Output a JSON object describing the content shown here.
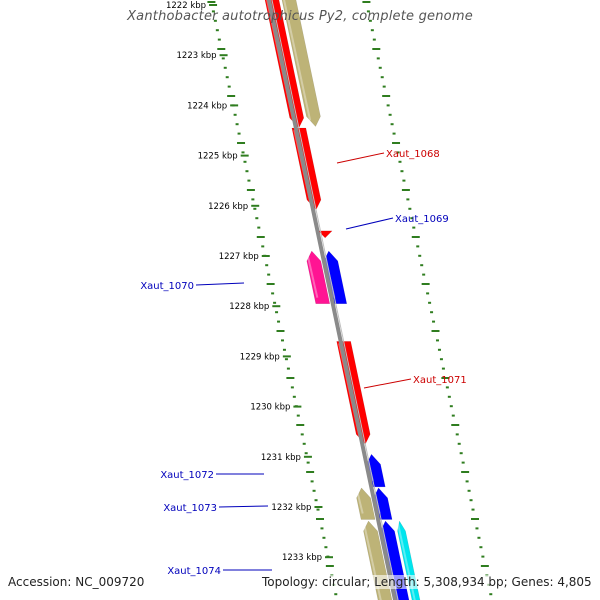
{
  "title": "Xanthobacter autotrophicus Py2, complete genome",
  "footer": {
    "accession_label": "Accession:",
    "accession": "NC_009720",
    "topology_label": "Topology:",
    "topology": "circular",
    "length_label": "Length:",
    "length": "5,308,934 bp",
    "genes_label": "Genes:",
    "genes": "4,805"
  },
  "colors": {
    "backbone": "#8a8a8a",
    "ticks": "#2f7d1f",
    "forward_label": "#cc0000",
    "reverse_label": "#0000bb",
    "red": "#ff0000",
    "blue": "#0000ff",
    "tan": "#bdb377",
    "magenta": "#ff1493",
    "cyan": "#00e5ee"
  },
  "scale": {
    "unit": "kbp",
    "labels": [
      "1222 kbp",
      "1223 kbp",
      "1224 kbp",
      "1225 kbp",
      "1226 kbp",
      "1227 kbp",
      "1228 kbp",
      "1229 kbp",
      "1230 kbp",
      "1231 kbp",
      "1232 kbp",
      "1233 kbp"
    ]
  },
  "genes": [
    {
      "label": "",
      "strand": "forward",
      "ring": "inner",
      "color": "red",
      "start_kbp": 1221.6,
      "end_kbp": 1224.45
    },
    {
      "label": "",
      "strand": "forward",
      "ring": "outer",
      "color": "tan",
      "start_kbp": 1221.6,
      "end_kbp": 1224.42
    },
    {
      "label": "Xaut_1068",
      "strand": "forward",
      "ring": "inner",
      "color": "red",
      "start_kbp": 1224.45,
      "end_kbp": 1226.08
    },
    {
      "label": "Xaut_1069",
      "strand": "reverse",
      "ring": "inner",
      "color": "red",
      "start_kbp": 1226.5,
      "end_kbp": 1226.62
    },
    {
      "label": "Xaut_1070",
      "strand": "reverse",
      "ring": "inner",
      "color": "blue",
      "start_kbp": 1226.9,
      "end_kbp": 1227.95
    },
    {
      "label": "",
      "strand": "reverse",
      "ring": "outer",
      "color": "magenta",
      "start_kbp": 1226.9,
      "end_kbp": 1227.95
    },
    {
      "label": "Xaut_1071",
      "strand": "forward",
      "ring": "inner",
      "color": "red",
      "start_kbp": 1228.7,
      "end_kbp": 1230.75
    },
    {
      "label": "Xaut_1072",
      "strand": "reverse",
      "ring": "inner",
      "color": "blue",
      "start_kbp": 1230.95,
      "end_kbp": 1231.6
    },
    {
      "label": "Xaut_1073",
      "strand": "reverse",
      "ring": "inner",
      "color": "blue",
      "start_kbp": 1231.62,
      "end_kbp": 1232.25
    },
    {
      "label": "",
      "strand": "reverse",
      "ring": "outer",
      "color": "tan",
      "start_kbp": 1231.62,
      "end_kbp": 1232.25
    },
    {
      "label": "Xaut_1074",
      "strand": "reverse",
      "ring": "inner",
      "color": "blue",
      "start_kbp": 1232.28,
      "end_kbp": 1234.2
    },
    {
      "label": "",
      "strand": "reverse",
      "ring": "outer",
      "color": "tan",
      "start_kbp": 1232.28,
      "end_kbp": 1234.2
    },
    {
      "label": "",
      "strand": "reverse",
      "ring": "middle",
      "color": "cyan",
      "start_kbp": 1232.28,
      "end_kbp": 1234.2
    }
  ]
}
